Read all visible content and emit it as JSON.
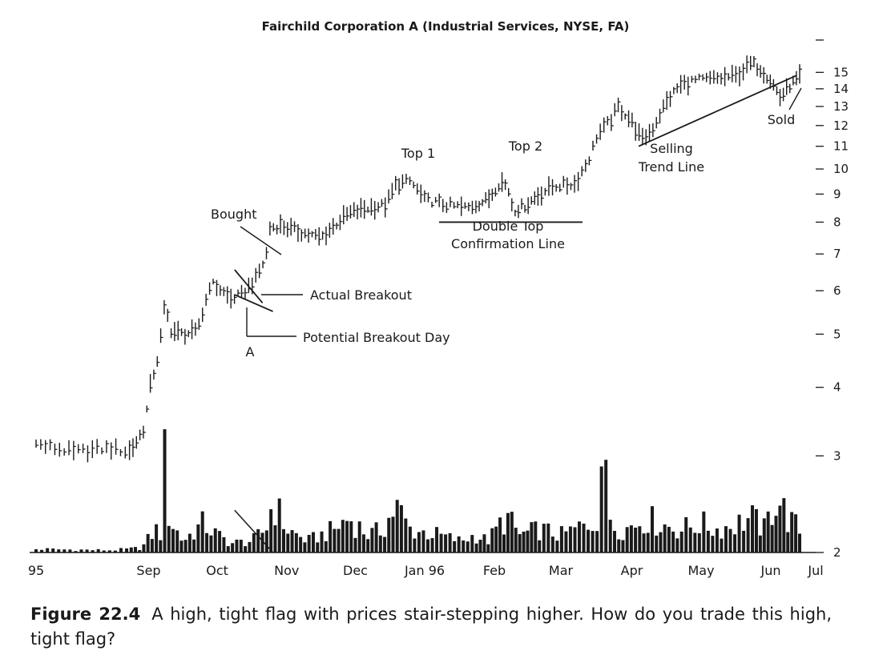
{
  "chart_data": {
    "type": "bar",
    "subtype": "price-ohlc-bars-with-volume",
    "title": "Fairchild Corporation A (Industrial Services, NYSE, FA)",
    "x_tick_labels": [
      "95",
      "Sep",
      "Oct",
      "Nov",
      "Dec",
      "Jan 96",
      "Feb",
      "Mar",
      "Apr",
      "May",
      "Jun",
      "Jul"
    ],
    "x_tick_month_index": [
      0,
      1.3,
      2.3,
      3.3,
      4.3,
      5.3,
      6.3,
      7.3,
      8.3,
      9.3,
      10.3,
      11.3
    ],
    "y_scale": "log",
    "y_ticks": [
      2,
      3,
      4,
      5,
      6,
      7,
      8,
      9,
      10,
      11,
      12,
      13,
      14,
      15
    ],
    "y_range": [
      2,
      16.5
    ],
    "price_path": [
      [
        0,
        3.15
      ],
      [
        0.4,
        3.05
      ],
      [
        0.8,
        3.1
      ],
      [
        1.0,
        3.05
      ],
      [
        1.1,
        3.15
      ],
      [
        1.25,
        3.4
      ],
      [
        1.3,
        3.9
      ],
      [
        1.45,
        4.6
      ],
      [
        1.55,
        5.8
      ],
      [
        1.6,
        5.1
      ],
      [
        1.8,
        5.0
      ],
      [
        2.0,
        5.05
      ],
      [
        2.1,
        5.5
      ],
      [
        2.2,
        6.2
      ],
      [
        2.3,
        6.1
      ],
      [
        2.5,
        5.8
      ],
      [
        2.65,
        5.9
      ],
      [
        2.85,
        6.3
      ],
      [
        3.0,
        6.9
      ],
      [
        3.05,
        7.8
      ],
      [
        3.2,
        7.9
      ],
      [
        3.6,
        7.6
      ],
      [
        3.8,
        7.5
      ],
      [
        4.0,
        7.9
      ],
      [
        4.2,
        8.3
      ],
      [
        4.5,
        8.5
      ],
      [
        4.75,
        8.6
      ],
      [
        4.9,
        9.4
      ],
      [
        5.1,
        9.5
      ],
      [
        5.3,
        8.8
      ],
      [
        5.6,
        8.6
      ],
      [
        5.9,
        8.5
      ],
      [
        6.2,
        8.8
      ],
      [
        6.4,
        9.5
      ],
      [
        6.5,
        9.3
      ],
      [
        6.6,
        8.4
      ],
      [
        6.8,
        8.6
      ],
      [
        7.0,
        9.0
      ],
      [
        7.2,
        9.3
      ],
      [
        7.5,
        9.4
      ],
      [
        7.7,
        10.5
      ],
      [
        7.8,
        11.5
      ],
      [
        8.0,
        12.3
      ],
      [
        8.1,
        13.0
      ],
      [
        8.3,
        12.2
      ],
      [
        8.45,
        11.3
      ],
      [
        8.6,
        11.8
      ],
      [
        8.8,
        13.2
      ],
      [
        9.0,
        14.2
      ],
      [
        9.2,
        14.5
      ],
      [
        9.5,
        14.6
      ],
      [
        9.8,
        14.8
      ],
      [
        10.0,
        15.6
      ],
      [
        10.15,
        15.2
      ],
      [
        10.3,
        14.5
      ],
      [
        10.45,
        13.5
      ],
      [
        10.6,
        14.2
      ],
      [
        10.75,
        14.7
      ]
    ],
    "volume_path": [
      [
        0,
        0.03
      ],
      [
        0.8,
        0.02
      ],
      [
        1.2,
        0.04
      ],
      [
        1.4,
        0.2
      ],
      [
        1.5,
        0.15
      ],
      [
        1.55,
        1.0
      ],
      [
        1.6,
        0.3
      ],
      [
        1.8,
        0.1
      ],
      [
        2.1,
        0.25
      ],
      [
        2.3,
        0.15
      ],
      [
        2.5,
        0.08
      ],
      [
        2.8,
        0.1
      ],
      [
        3.0,
        0.2
      ],
      [
        3.1,
        0.45
      ],
      [
        3.3,
        0.2
      ],
      [
        3.6,
        0.1
      ],
      [
        3.8,
        0.15
      ],
      [
        4.0,
        0.2
      ],
      [
        4.2,
        0.3
      ],
      [
        4.5,
        0.15
      ],
      [
        4.7,
        0.2
      ],
      [
        4.9,
        0.4
      ],
      [
        5.1,
        0.2
      ],
      [
        5.5,
        0.15
      ],
      [
        5.8,
        0.1
      ],
      [
        6.0,
        0.15
      ],
      [
        6.2,
        0.1
      ],
      [
        6.4,
        0.25
      ],
      [
        6.5,
        0.3
      ],
      [
        6.7,
        0.15
      ],
      [
        7.0,
        0.2
      ],
      [
        7.3,
        0.15
      ],
      [
        7.5,
        0.2
      ],
      [
        7.7,
        0.25
      ],
      [
        7.8,
        0.3
      ],
      [
        7.85,
        0.9
      ],
      [
        8.0,
        0.25
      ],
      [
        8.2,
        0.2
      ],
      [
        8.5,
        0.3
      ],
      [
        8.7,
        0.25
      ],
      [
        9.0,
        0.2
      ],
      [
        9.3,
        0.25
      ],
      [
        9.5,
        0.2
      ],
      [
        9.8,
        0.25
      ],
      [
        10.0,
        0.3
      ],
      [
        10.2,
        0.2
      ],
      [
        10.4,
        0.5
      ],
      [
        10.55,
        0.3
      ],
      [
        10.75,
        0.2
      ]
    ],
    "trend_lines": [
      {
        "name": "flag-upper",
        "points": [
          [
            2.55,
            6.55
          ],
          [
            2.95,
            5.7
          ]
        ]
      },
      {
        "name": "flag-lower",
        "points": [
          [
            2.55,
            5.9
          ],
          [
            3.1,
            5.5
          ]
        ]
      },
      {
        "name": "double-top-confirmation",
        "points": [
          [
            5.5,
            8.0
          ],
          [
            7.6,
            8.0
          ]
        ]
      },
      {
        "name": "selling-trend-line",
        "points": [
          [
            8.4,
            11.0
          ],
          [
            10.7,
            14.8
          ]
        ]
      }
    ],
    "volume_marks": [
      {
        "name": "volume-flag-line",
        "points": [
          [
            2.55,
            0.33
          ],
          [
            3.1,
            0.0
          ]
        ]
      }
    ],
    "annotations": [
      {
        "name": "bought",
        "text": "Bought"
      },
      {
        "name": "actual-breakout",
        "text": "Actual Breakout"
      },
      {
        "name": "potential-breakout-day",
        "text": "Potential Breakout Day"
      },
      {
        "name": "point-a",
        "text": "A"
      },
      {
        "name": "top-1",
        "text": "Top 1"
      },
      {
        "name": "top-2",
        "text": "Top 2"
      },
      {
        "name": "double-top-line-1",
        "text": "Double Top"
      },
      {
        "name": "double-top-line-2",
        "text": "Confirmation Line"
      },
      {
        "name": "selling-line-1",
        "text": "Selling"
      },
      {
        "name": "selling-line-2",
        "text": "Trend Line"
      },
      {
        "name": "sold",
        "text": "Sold"
      }
    ],
    "grid": false,
    "legend": "none"
  },
  "caption": {
    "label": "Figure 22.4",
    "text": "A high, tight flag with prices stair-stepping higher. How do you trade this high, tight flag?"
  }
}
